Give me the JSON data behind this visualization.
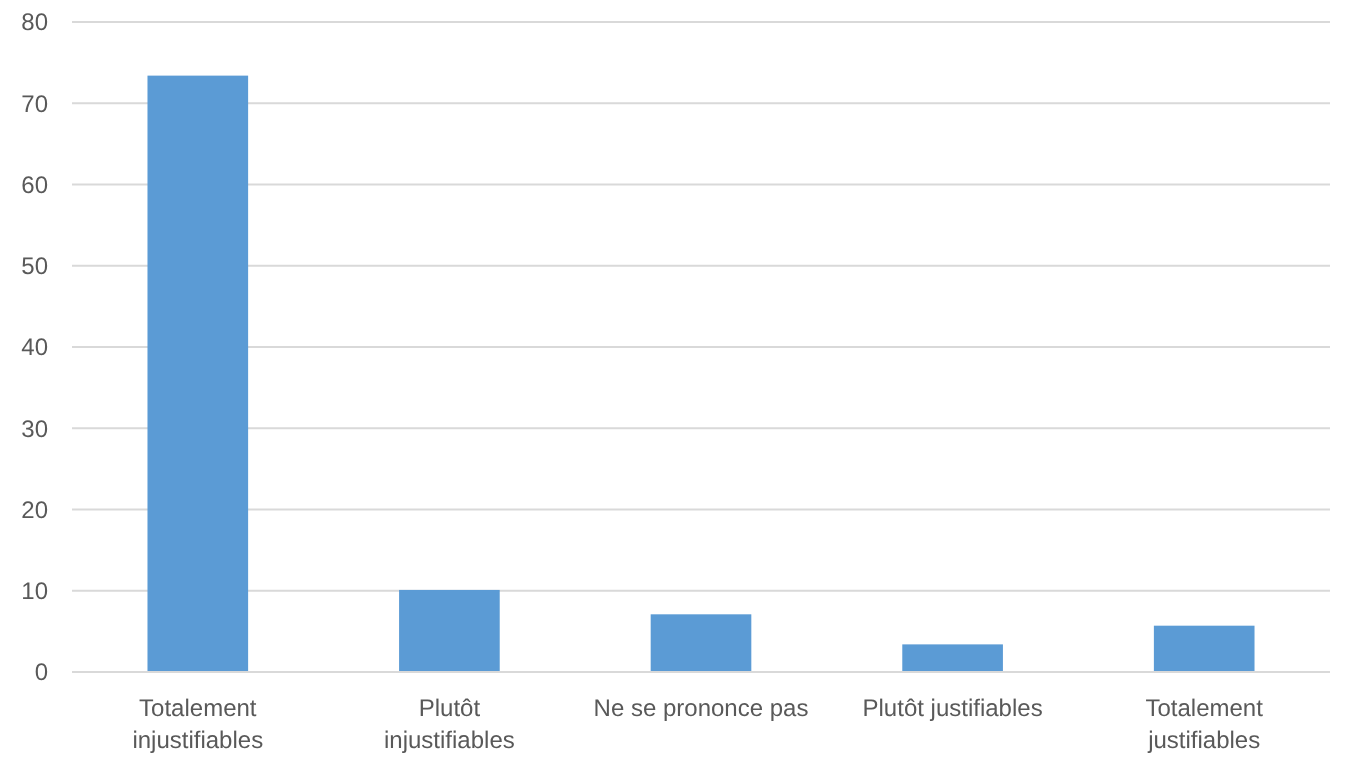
{
  "chart_data": {
    "type": "bar",
    "categories": [
      "Totalement injustifiables",
      "Plutôt injustifiables",
      "Ne se prononce pas",
      "Plutôt justifiables",
      "Totalement justifiables"
    ],
    "values": [
      73.4,
      10.1,
      7.1,
      3.4,
      5.7
    ],
    "color": "#5b9bd5",
    "ylim": [
      0,
      80
    ],
    "yticks": [
      0,
      10,
      20,
      30,
      40,
      50,
      60,
      70,
      80
    ],
    "grid": "y"
  }
}
